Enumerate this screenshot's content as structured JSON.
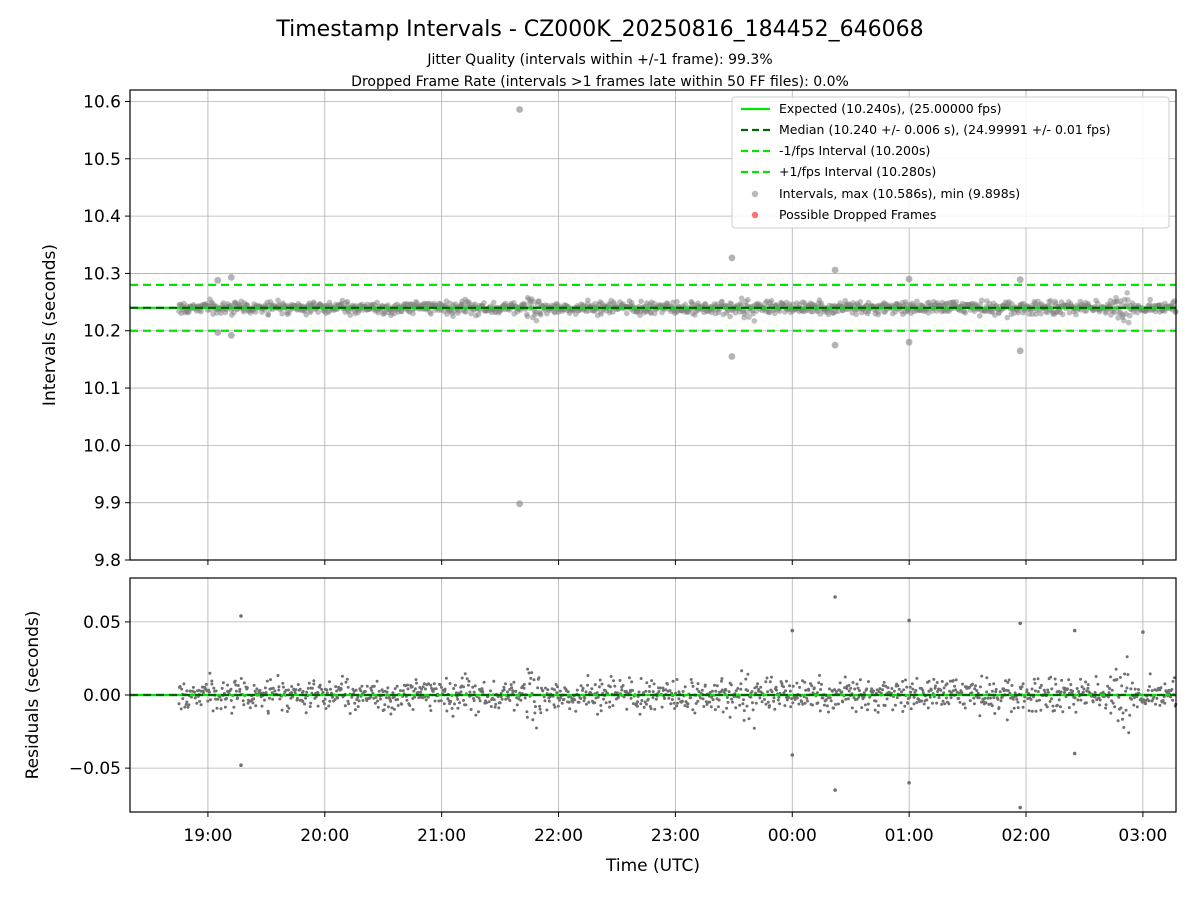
{
  "chart_data": {
    "title": "Timestamp Intervals - CZ000K_20250816_184452_646068",
    "subtitle_1": "Jitter Quality (intervals within +/-1 frame): 99.3%",
    "subtitle_2": "Dropped Frame Rate (intervals >1 frames late within 50 FF files): 0.0%",
    "top_panel": {
      "type": "scatter",
      "ylabel": "Intervals (seconds)",
      "ylim": [
        9.8,
        10.62
      ],
      "yticks": [
        "9.8",
        "9.9",
        "10.0",
        "10.1",
        "10.2",
        "10.3",
        "10.4",
        "10.5",
        "10.6"
      ],
      "ytick_values": [
        9.8,
        9.9,
        10.0,
        10.1,
        10.2,
        10.3,
        10.4,
        10.5,
        10.6
      ],
      "grid": true,
      "legend_position": "top-right",
      "reference_lines": [
        {
          "name": "Expected (10.240s), (25.00000 fps)",
          "value": 10.24,
          "style": "solid",
          "color": "#00e600"
        },
        {
          "name": "Median (10.240 +/- 0.006 s), (24.99991 +/- 0.01 fps)",
          "value": 10.24,
          "style": "dashed",
          "color": "#006400"
        },
        {
          "name": "-1/fps Interval (10.200s)",
          "value": 10.2,
          "style": "dashed",
          "color": "#00e600"
        },
        {
          "name": "+1/fps Interval (10.280s)",
          "value": 10.28,
          "style": "dashed",
          "color": "#00e600"
        }
      ],
      "scatter_series": [
        {
          "name": "Intervals, max (10.586s), min (9.898s)",
          "color": "#808080",
          "max": 10.586,
          "min": 9.898
        },
        {
          "name": "Possible Dropped Frames",
          "color": "#ff4d4d"
        }
      ],
      "notable_points": [
        {
          "t": "21:40",
          "y": 10.586
        },
        {
          "t": "21:40",
          "y": 9.898
        },
        {
          "t": "23:29",
          "y": 10.327
        },
        {
          "t": "23:29",
          "y": 10.155
        },
        {
          "t": "00:22",
          "y": 10.306
        },
        {
          "t": "00:22",
          "y": 10.175
        },
        {
          "t": "01:00",
          "y": 10.29
        },
        {
          "t": "01:00",
          "y": 10.18
        },
        {
          "t": "01:57",
          "y": 10.289
        },
        {
          "t": "01:57",
          "y": 10.165
        },
        {
          "t": "19:12",
          "y": 10.293
        },
        {
          "t": "19:12",
          "y": 10.192
        },
        {
          "t": "19:05",
          "y": 10.288
        },
        {
          "t": "19:05",
          "y": 10.197
        }
      ]
    },
    "bottom_panel": {
      "type": "scatter",
      "ylabel": "Residuals (seconds)",
      "xlabel": "Time (UTC)",
      "ylim": [
        -0.08,
        0.08
      ],
      "yticks": [
        "0.05",
        "0.00",
        "−0.05"
      ],
      "ytick_values": [
        0.05,
        0.0,
        -0.05
      ],
      "grid": true,
      "reference_lines": [
        {
          "value": 0.0,
          "style": "solid",
          "color": "#00e600"
        },
        {
          "value": 0.0,
          "style": "dashed",
          "color": "#006400"
        }
      ],
      "notable_points": [
        {
          "t": "19:17",
          "y": 0.054
        },
        {
          "t": "19:17",
          "y": -0.048
        },
        {
          "t": "00:22",
          "y": 0.067
        },
        {
          "t": "00:22",
          "y": -0.065
        },
        {
          "t": "01:00",
          "y": 0.051
        },
        {
          "t": "01:00",
          "y": -0.06
        },
        {
          "t": "01:57",
          "y": 0.049
        },
        {
          "t": "01:57",
          "y": -0.077
        },
        {
          "t": "00:00",
          "y": 0.044
        },
        {
          "t": "00:00",
          "y": -0.041
        },
        {
          "t": "02:25",
          "y": 0.044
        },
        {
          "t": "02:25",
          "y": -0.04
        },
        {
          "t": "03:00",
          "y": 0.043
        }
      ]
    },
    "x_axis": {
      "start": "18:20",
      "end": "03:17",
      "series_start": "18:45",
      "series_end": "03:17",
      "ticks": [
        "19:00",
        "20:00",
        "21:00",
        "22:00",
        "23:00",
        "00:00",
        "01:00",
        "02:00",
        "03:00"
      ]
    }
  }
}
